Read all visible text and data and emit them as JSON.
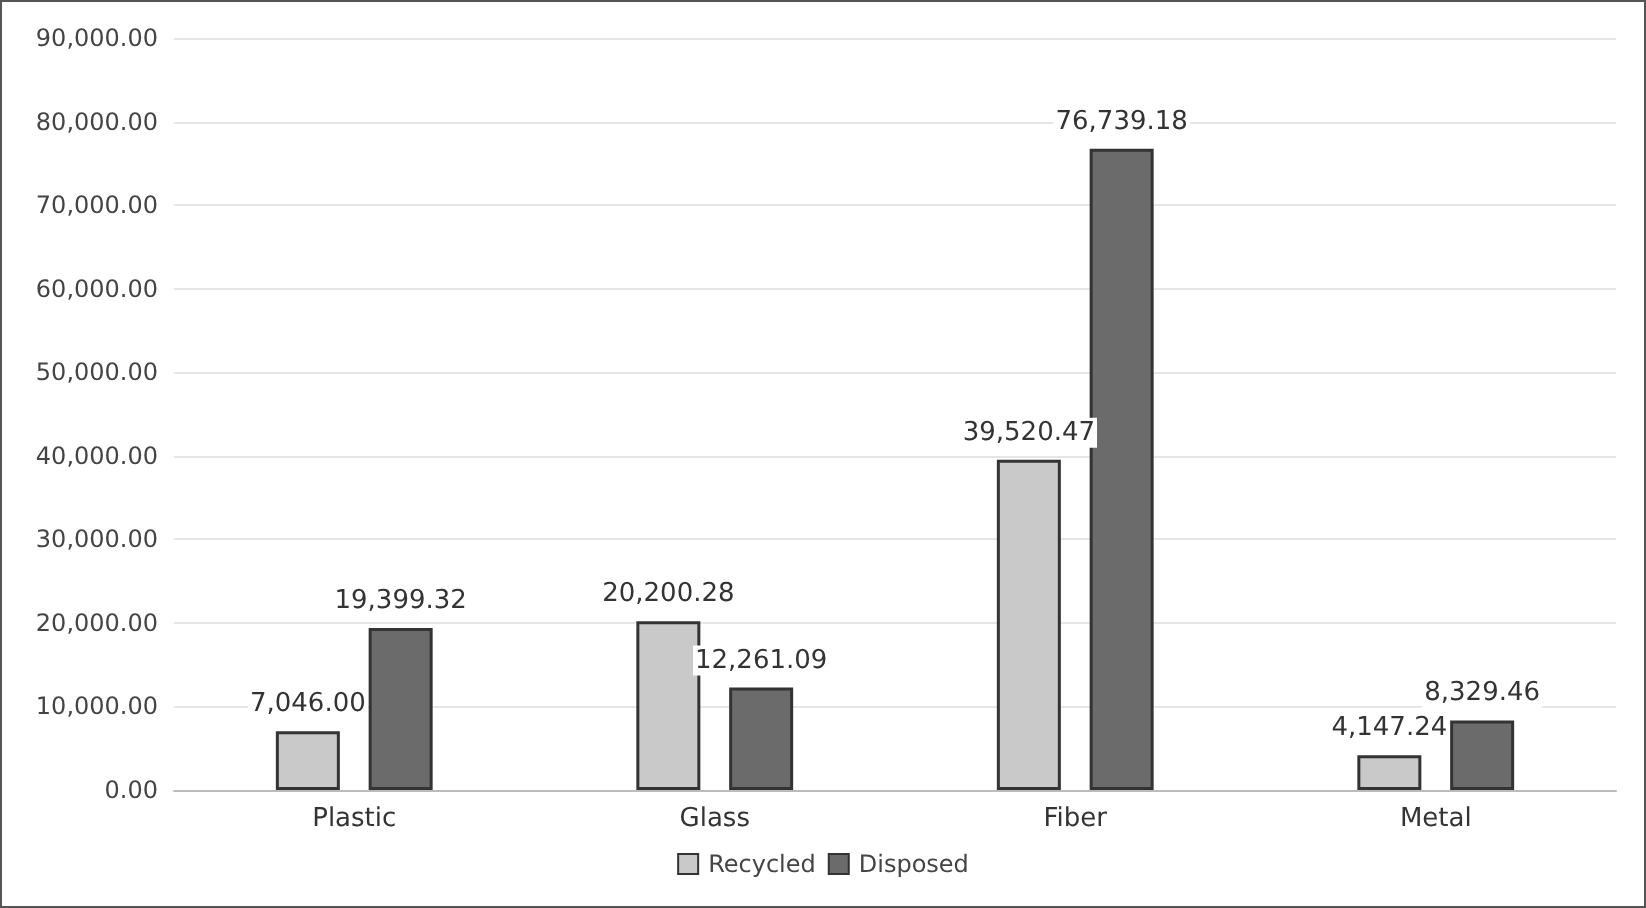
{
  "chart_data": {
    "type": "bar",
    "categories": [
      "Plastic",
      "Glass",
      "Fiber",
      "Metal"
    ],
    "series": [
      {
        "name": "Recycled",
        "color": "#c9c9c9",
        "values": [
          7046.0,
          20200.28,
          39520.47,
          4147.24
        ],
        "value_labels": [
          "7,046.00",
          "20,200.28",
          "39,520.47",
          "4,147.24"
        ]
      },
      {
        "name": "Disposed",
        "color": "#6b6b6b",
        "values": [
          19399.32,
          12261.09,
          76739.18,
          8329.46
        ],
        "value_labels": [
          "19,399.32",
          "12,261.09",
          "76,739.18",
          "8,329.46"
        ]
      }
    ],
    "ylim": [
      0,
      90000
    ],
    "yticks": [
      {
        "value": 0,
        "label": "0.00"
      },
      {
        "value": 10000,
        "label": "10,000.00"
      },
      {
        "value": 20000,
        "label": "20,000.00"
      },
      {
        "value": 30000,
        "label": "30,000.00"
      },
      {
        "value": 40000,
        "label": "40,000.00"
      },
      {
        "value": 50000,
        "label": "50,000.00"
      },
      {
        "value": 60000,
        "label": "60,000.00"
      },
      {
        "value": 70000,
        "label": "70,000.00"
      },
      {
        "value": 80000,
        "label": "80,000.00"
      },
      {
        "value": 90000,
        "label": "90,000.00"
      }
    ],
    "grid": "y",
    "legend": "bottom"
  }
}
